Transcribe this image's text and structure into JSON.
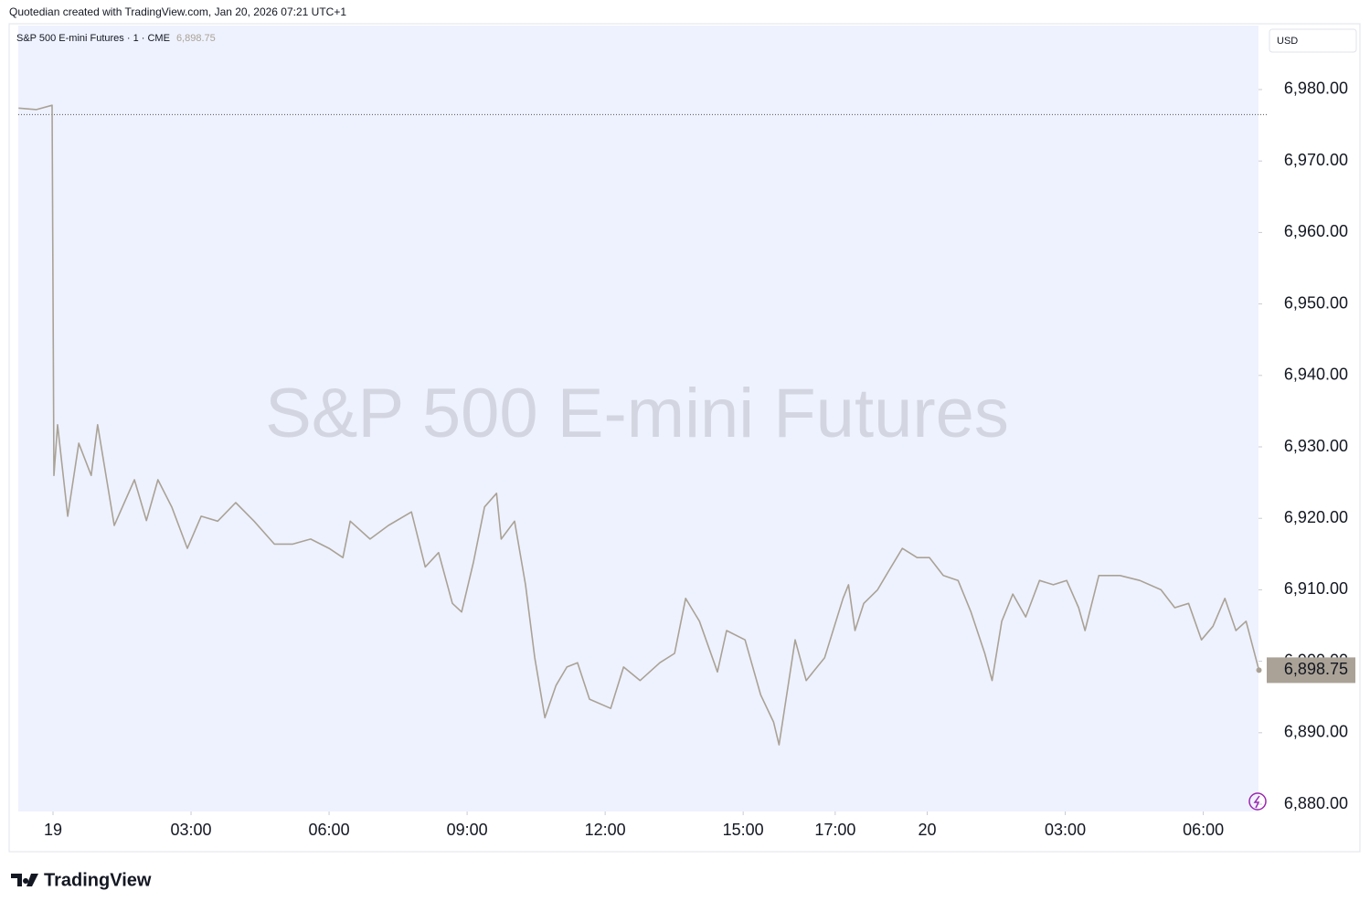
{
  "header": "Quotedian created with TradingView.com, Jan 20, 2026 07:21 UTC+1",
  "chart_data": {
    "type": "line",
    "title": "S&P 500 E-mini Futures",
    "interval": "1",
    "exchange": "CME",
    "currency": "USD",
    "brand": "TradingView",
    "color": "#aaa296",
    "background": "#eef2fe",
    "reference_line": 6976.5,
    "last_price": 6898.75,
    "last_price_label": "6,898.75",
    "x": [
      -0.75,
      -0.36,
      -0.02,
      0.02,
      0.1,
      0.32,
      0.56,
      0.83,
      0.97,
      1.33,
      1.77,
      2.03,
      2.28,
      2.58,
      2.92,
      3.22,
      3.58,
      3.97,
      4.37,
      4.81,
      5.21,
      5.6,
      6.0,
      6.3,
      6.46,
      6.89,
      7.29,
      7.79,
      8.09,
      8.38,
      8.68,
      8.88,
      9.14,
      9.38,
      9.64,
      9.74,
      10.03,
      10.27,
      10.47,
      10.69,
      10.93,
      11.17,
      11.4,
      11.66,
      12.12,
      12.4,
      12.76,
      13.19,
      13.51,
      13.75,
      14.05,
      14.44,
      14.64,
      15.04,
      15.38,
      15.66,
      15.78,
      15.9,
      16.13,
      16.37,
      16.77,
      17.17,
      17.29,
      17.43,
      17.62,
      17.92,
      18.16,
      18.46,
      18.78,
      19.05,
      19.35,
      19.67,
      19.95,
      20.25,
      20.41,
      20.62,
      20.86,
      21.14,
      21.44,
      21.74,
      22.03,
      22.29,
      22.43,
      22.73,
      23.19,
      23.62,
      24.08,
      24.38,
      24.68,
      24.96,
      25.21,
      25.47,
      25.71,
      25.93,
      26.21
    ],
    "values": [
      6977.4,
      6977.2,
      6977.8,
      6926.0,
      6933.1,
      6920.3,
      6930.5,
      6926.0,
      6933.1,
      6919.0,
      6925.4,
      6919.7,
      6925.4,
      6921.6,
      6915.8,
      6920.3,
      6919.6,
      6922.2,
      6919.6,
      6916.4,
      6916.4,
      6917.1,
      6915.8,
      6914.5,
      6919.6,
      6917.1,
      6919.0,
      6920.9,
      6913.2,
      6915.2,
      6908.1,
      6906.9,
      6913.9,
      6921.6,
      6923.5,
      6917.1,
      6919.6,
      6910.7,
      6900.5,
      6892.1,
      6896.6,
      6899.2,
      6899.8,
      6894.7,
      6893.4,
      6899.2,
      6897.3,
      6899.8,
      6901.1,
      6908.8,
      6905.6,
      6898.5,
      6904.3,
      6903.0,
      6895.3,
      6891.5,
      6888.3,
      6893.4,
      6903.0,
      6897.3,
      6900.5,
      6908.8,
      6910.7,
      6904.3,
      6908.1,
      6910.0,
      6912.6,
      6915.8,
      6914.5,
      6914.5,
      6912.0,
      6911.3,
      6906.9,
      6901.1,
      6897.3,
      6905.6,
      6909.4,
      6906.2,
      6911.3,
      6910.7,
      6911.3,
      6907.5,
      6904.3,
      6912.0,
      6912.0,
      6911.3,
      6910.0,
      6907.5,
      6908.1,
      6903.0,
      6904.9,
      6908.8,
      6904.3,
      6905.6,
      6898.75
    ],
    "xlim": [
      -0.755,
      26.2
    ],
    "xticks": [
      {
        "value": 0,
        "label": "19"
      },
      {
        "value": 3,
        "label": "03:00"
      },
      {
        "value": 6,
        "label": "06:00"
      },
      {
        "value": 9,
        "label": "09:00"
      },
      {
        "value": 12,
        "label": "12:00"
      },
      {
        "value": 15,
        "label": "15:00"
      },
      {
        "value": 17,
        "label": "17:00"
      },
      {
        "value": 19,
        "label": "20"
      },
      {
        "value": 22,
        "label": "03:00"
      },
      {
        "value": 25,
        "label": "06:00"
      }
    ],
    "ylim": [
      6878.98,
      6988.95
    ],
    "yticks": [
      {
        "value": 6880,
        "label": "6,880.00"
      },
      {
        "value": 6890,
        "label": "6,890.00"
      },
      {
        "value": 6900,
        "label": "6,900.00"
      },
      {
        "value": 6910,
        "label": "6,910.00"
      },
      {
        "value": 6920,
        "label": "6,920.00"
      },
      {
        "value": 6930,
        "label": "6,930.00"
      },
      {
        "value": 6940,
        "label": "6,940.00"
      },
      {
        "value": 6950,
        "label": "6,950.00"
      },
      {
        "value": 6960,
        "label": "6,960.00"
      },
      {
        "value": 6970,
        "label": "6,970.00"
      },
      {
        "value": 6980,
        "label": "6,980.00"
      }
    ]
  }
}
